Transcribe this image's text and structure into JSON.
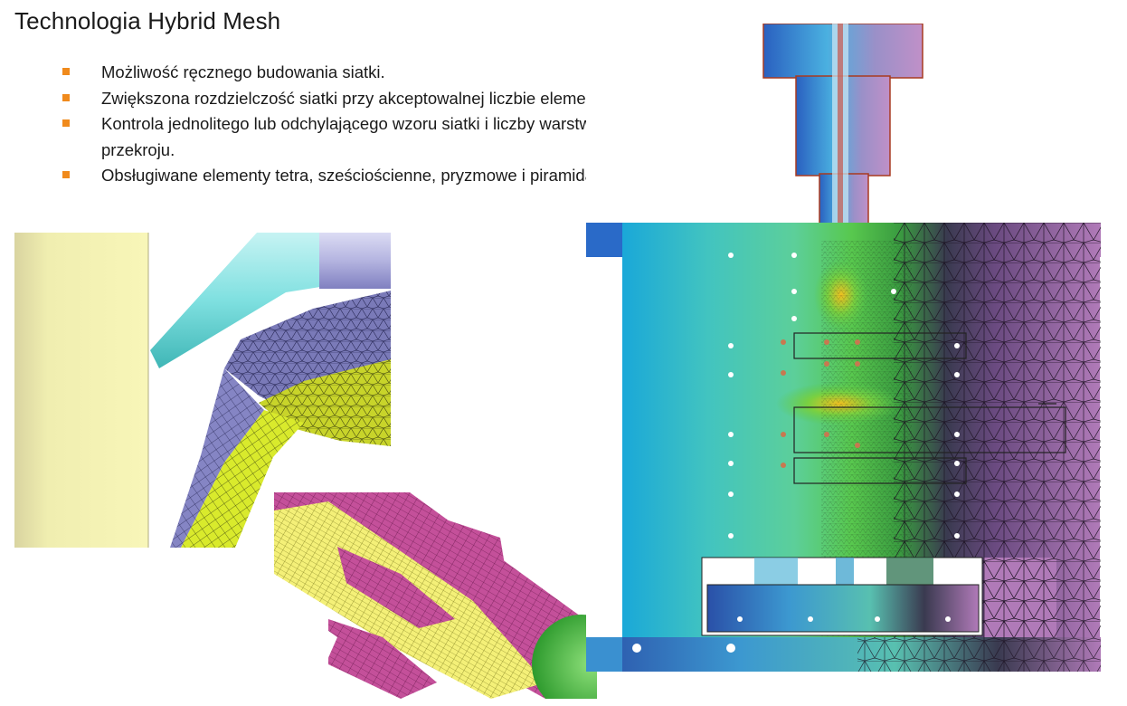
{
  "title": "Technologia Hybrid Mesh",
  "bullets": [
    {
      "text": "Możliwość ręcznego budowania siatki."
    },
    {
      "text": "Zwiększona rozdzielczość siatki przy akceptowalnej liczbie elementów."
    },
    {
      "text": "Kontrola jednolitego lub odchylającego wzoru siatki i liczby warstw elementów na przekroju."
    },
    {
      "text": "Obsługiwane elementy tetra, sześciościenne, pryzmowe i piramidalne."
    }
  ],
  "colors": {
    "bullet_marker": "#f08a1c",
    "mesh_olive": "#d9ea2c",
    "mesh_slate": "#7a7ab8",
    "mesh_magenta": "#c4509a",
    "mesh_purple": "#b07ab8",
    "field_cyan": "#3fb6d8"
  }
}
